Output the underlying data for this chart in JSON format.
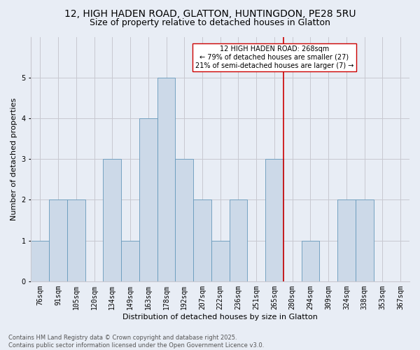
{
  "title": "12, HIGH HADEN ROAD, GLATTON, HUNTINGDON, PE28 5RU",
  "subtitle": "Size of property relative to detached houses in Glatton",
  "xlabel": "Distribution of detached houses by size in Glatton",
  "ylabel": "Number of detached properties",
  "categories": [
    "76sqm",
    "91sqm",
    "105sqm",
    "120sqm",
    "134sqm",
    "149sqm",
    "163sqm",
    "178sqm",
    "192sqm",
    "207sqm",
    "222sqm",
    "236sqm",
    "251sqm",
    "265sqm",
    "280sqm",
    "294sqm",
    "309sqm",
    "324sqm",
    "338sqm",
    "353sqm",
    "367sqm"
  ],
  "values": [
    1,
    2,
    2,
    0,
    3,
    1,
    4,
    5,
    3,
    2,
    1,
    2,
    0,
    3,
    0,
    1,
    0,
    2,
    2,
    0,
    0
  ],
  "bar_color": "#ccd9e8",
  "bar_edge_color": "#6699bb",
  "bar_edge_width": 0.6,
  "grid_color": "#c8c8d0",
  "background_color": "#e8edf5",
  "vline_x_index": 13.5,
  "vline_color": "#cc0000",
  "annotation_line1": "12 HIGH HADEN ROAD: 268sqm",
  "annotation_line2": "← 79% of detached houses are smaller (27)",
  "annotation_line3": "21% of semi-detached houses are larger (7) →",
  "annotation_box_color": "#ffffff",
  "annotation_box_edgecolor": "#cc0000",
  "footer_text": "Contains HM Land Registry data © Crown copyright and database right 2025.\nContains public sector information licensed under the Open Government Licence v3.0.",
  "ylim": [
    0,
    6
  ],
  "yticks": [
    0,
    1,
    2,
    3,
    4,
    5,
    6
  ],
  "title_fontsize": 10,
  "subtitle_fontsize": 9,
  "xlabel_fontsize": 8,
  "ylabel_fontsize": 8,
  "tick_fontsize": 7,
  "annotation_fontsize": 7,
  "footer_fontsize": 6
}
